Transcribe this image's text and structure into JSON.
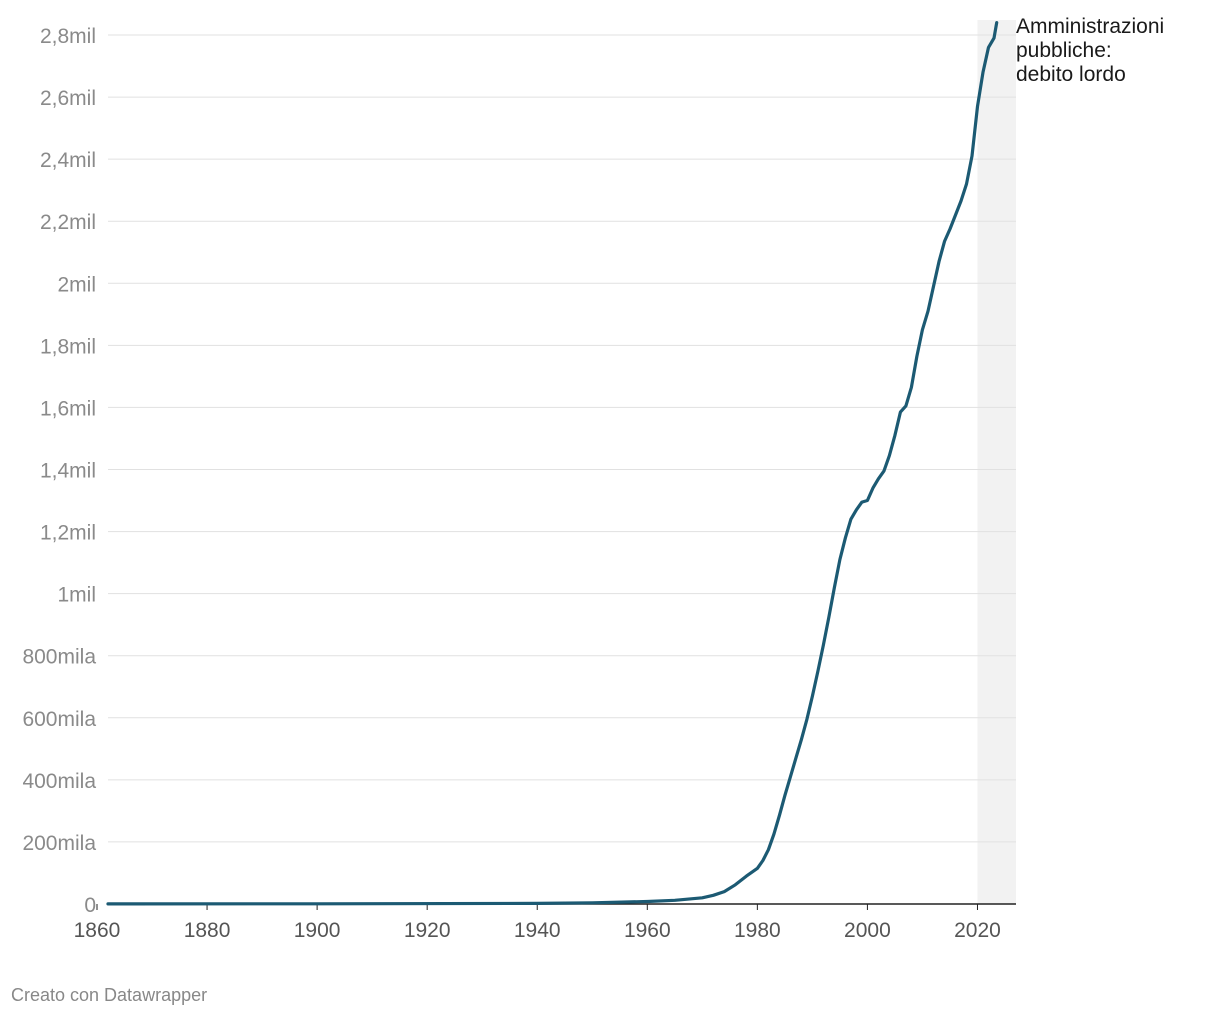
{
  "chart_data": {
    "type": "line",
    "title": "",
    "xlabel": "",
    "ylabel": "",
    "xlim": [
      1862,
      2027
    ],
    "ylim": [
      0,
      2800000
    ],
    "grid": true,
    "highlight_band": {
      "from": 2020,
      "to": 2027,
      "color": "#f2f2f2"
    },
    "x_ticks": [
      1860,
      1880,
      1900,
      1920,
      1940,
      1960,
      1980,
      2000,
      2020
    ],
    "x_tick_labels": [
      "1860",
      "1880",
      "1900",
      "1920",
      "1940",
      "1960",
      "1980",
      "2000",
      "2020"
    ],
    "y_ticks": [
      0,
      200000,
      400000,
      600000,
      800000,
      1000000,
      1200000,
      1400000,
      1600000,
      1800000,
      2000000,
      2200000,
      2400000,
      2600000,
      2800000
    ],
    "y_tick_labels": [
      "0",
      "200mila",
      "400mila",
      "600mila",
      "800mila",
      "1mil",
      "1,2mil",
      "1,4mil",
      "1,6mil",
      "1,8mil",
      "2mil",
      "2,2mil",
      "2,4mil",
      "2,6mil",
      "2,8mil"
    ],
    "series": [
      {
        "name": "Amministrazioni pubbliche: debito lordo",
        "label_lines": [
          "Amministrazioni",
          "pubbliche:",
          "debito lordo"
        ],
        "color": "#1c5a73",
        "x": [
          1862,
          1900,
          1940,
          1950,
          1960,
          1965,
          1970,
          1972,
          1974,
          1976,
          1978,
          1980,
          1981,
          1982,
          1983,
          1984,
          1985,
          1986,
          1987,
          1988,
          1989,
          1990,
          1991,
          1992,
          1993,
          1994,
          1995,
          1996,
          1997,
          1998,
          1999,
          2000,
          2001,
          2002,
          2003,
          2004,
          2005,
          2006,
          2007,
          2008,
          2009,
          2010,
          2011,
          2012,
          2013,
          2014,
          2015,
          2016,
          2017,
          2018,
          2019,
          2020,
          2021,
          2022,
          2023,
          2023.5
        ],
        "values": [
          200,
          500,
          2000,
          4000,
          8000,
          12000,
          20000,
          28000,
          40000,
          62000,
          90000,
          115000,
          140000,
          175000,
          225000,
          285000,
          350000,
          410000,
          470000,
          530000,
          595000,
          670000,
          750000,
          835000,
          925000,
          1020000,
          1110000,
          1180000,
          1240000,
          1270000,
          1295000,
          1300000,
          1340000,
          1370000,
          1395000,
          1445000,
          1510000,
          1585000,
          1605000,
          1665000,
          1765000,
          1850000,
          1910000,
          1990000,
          2070000,
          2135000,
          2175000,
          2220000,
          2265000,
          2320000,
          2410000,
          2570000,
          2680000,
          2760000,
          2790000,
          2840000
        ]
      }
    ]
  },
  "footer": {
    "credit": "Creato con Datawrapper"
  }
}
